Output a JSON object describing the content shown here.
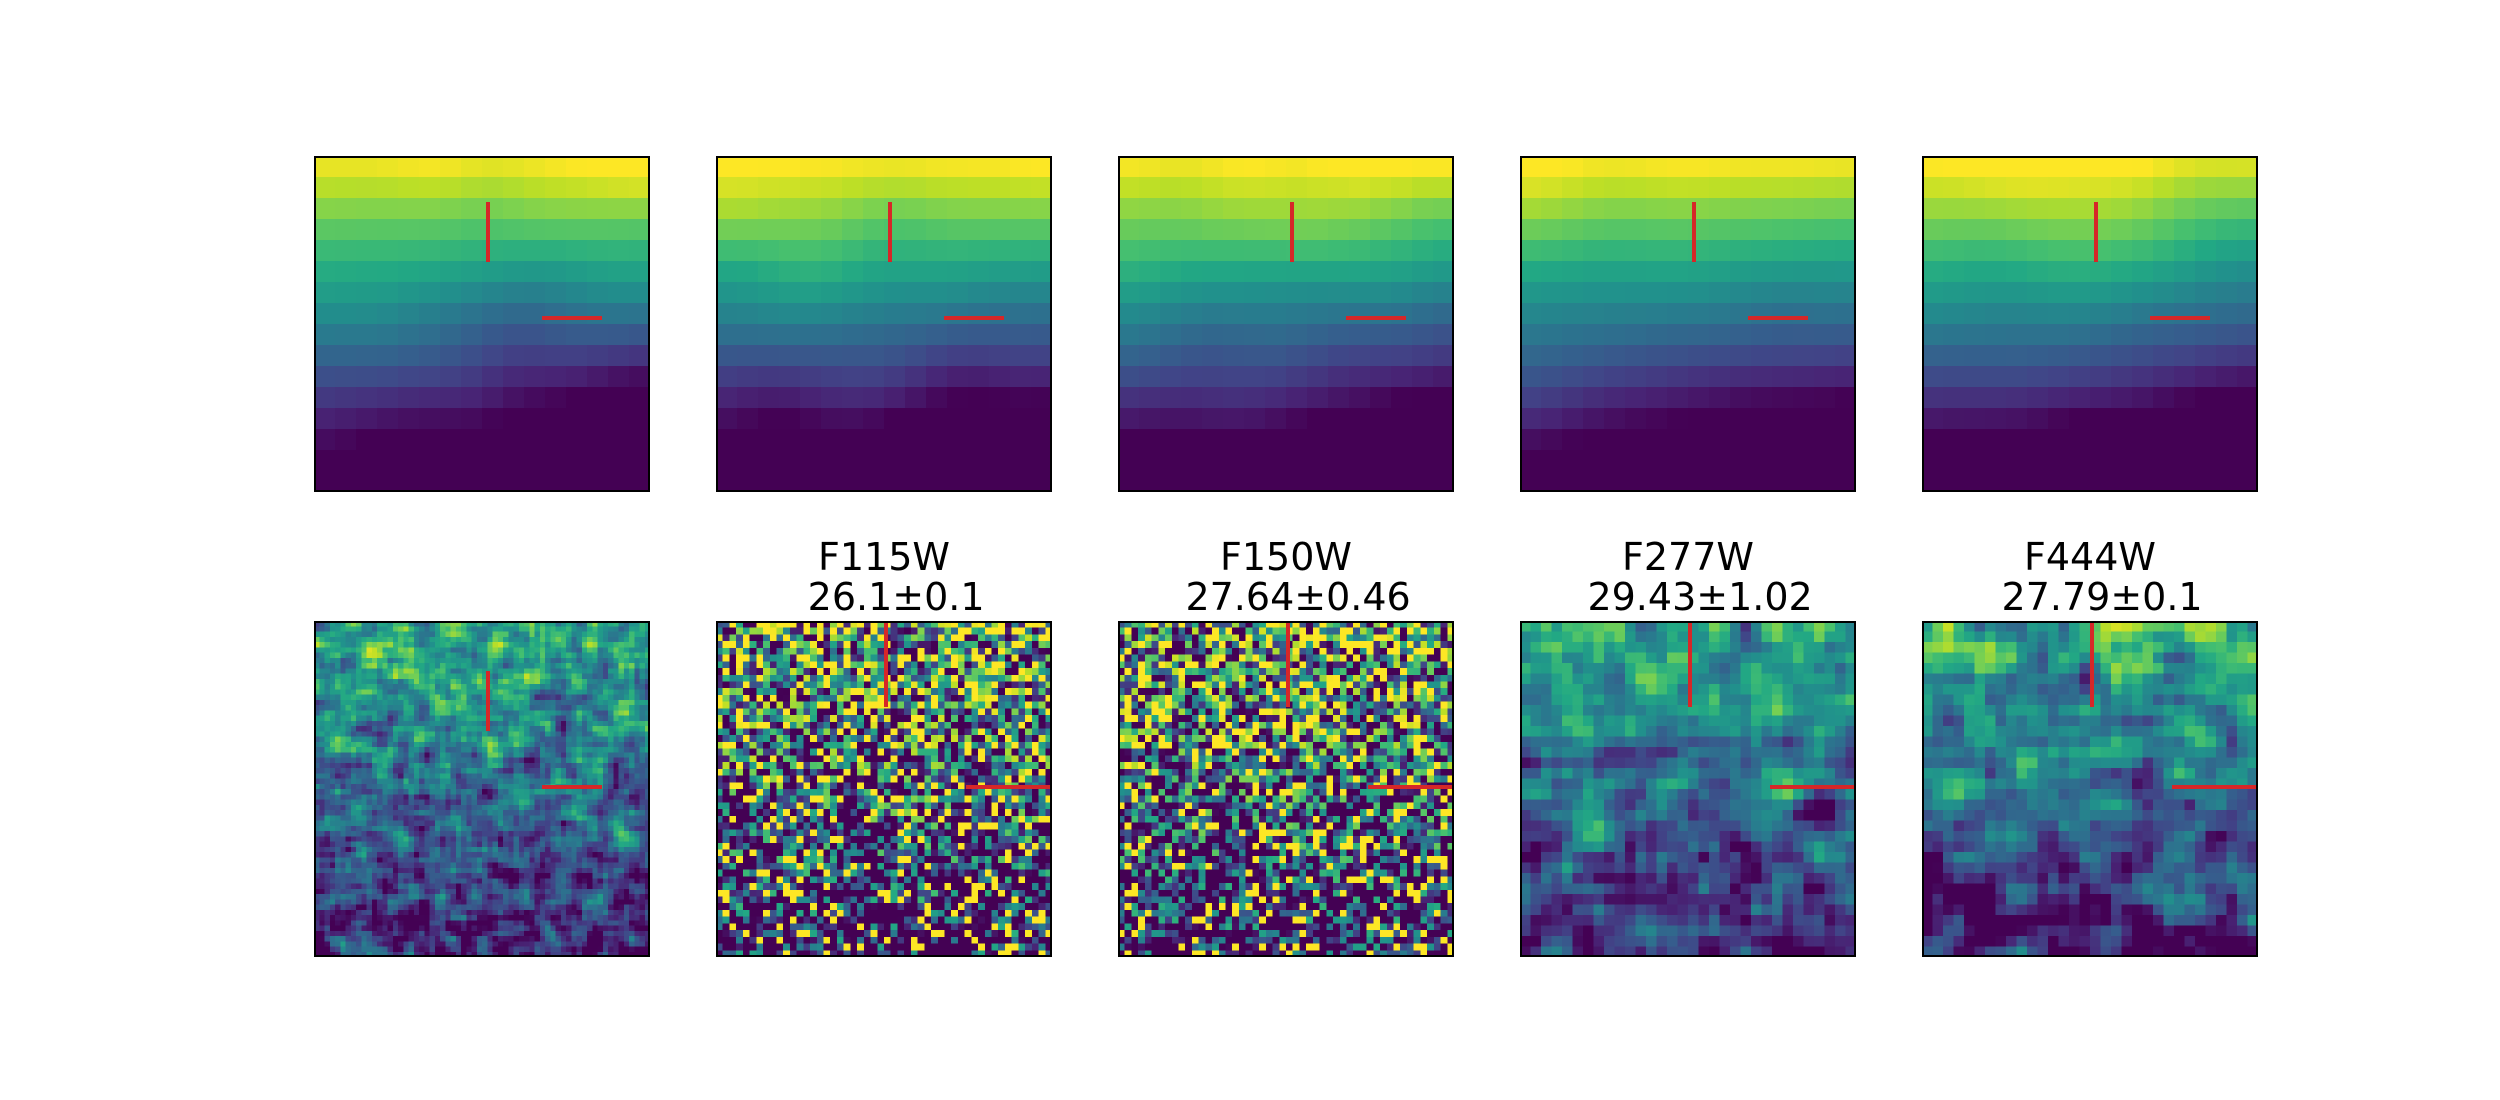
{
  "figure": {
    "grid": "2 rows x 5 columns of image cutouts",
    "colormap": "viridis",
    "crosshair_color": "#d62728",
    "frame_color": "#000000"
  },
  "chart_data": {
    "type": "heatmap",
    "rows": [
      {
        "name": "top",
        "panels": [
          {
            "filter": "",
            "value": "",
            "pixels": 16,
            "smooth": 3,
            "seed": 11
          },
          {
            "filter": "",
            "value": "",
            "pixels": 16,
            "smooth": 3,
            "seed": 12
          },
          {
            "filter": "",
            "value": "",
            "pixels": 16,
            "smooth": 3,
            "seed": 13
          },
          {
            "filter": "",
            "value": "",
            "pixels": 16,
            "smooth": 4,
            "seed": 14
          },
          {
            "filter": "",
            "value": "",
            "pixels": 16,
            "smooth": 4,
            "seed": 15
          }
        ]
      },
      {
        "name": "bottom",
        "panels": [
          {
            "filter": "",
            "value": "",
            "pixels": 64,
            "smooth": 1,
            "seed": 21
          },
          {
            "filter": "F115W",
            "value": "26.1±0.1",
            "pixels": 50,
            "smooth": 0,
            "seed": 22
          },
          {
            "filter": "F150W",
            "value": "27.64±0.46",
            "pixels": 50,
            "smooth": 0,
            "seed": 23
          },
          {
            "filter": "F277W",
            "value": "29.43±1.02",
            "pixels": 32,
            "smooth": 1,
            "seed": 24
          },
          {
            "filter": "F444W",
            "value": "27.79±0.1",
            "pixels": 32,
            "smooth": 1,
            "seed": 25
          }
        ]
      }
    ]
  }
}
